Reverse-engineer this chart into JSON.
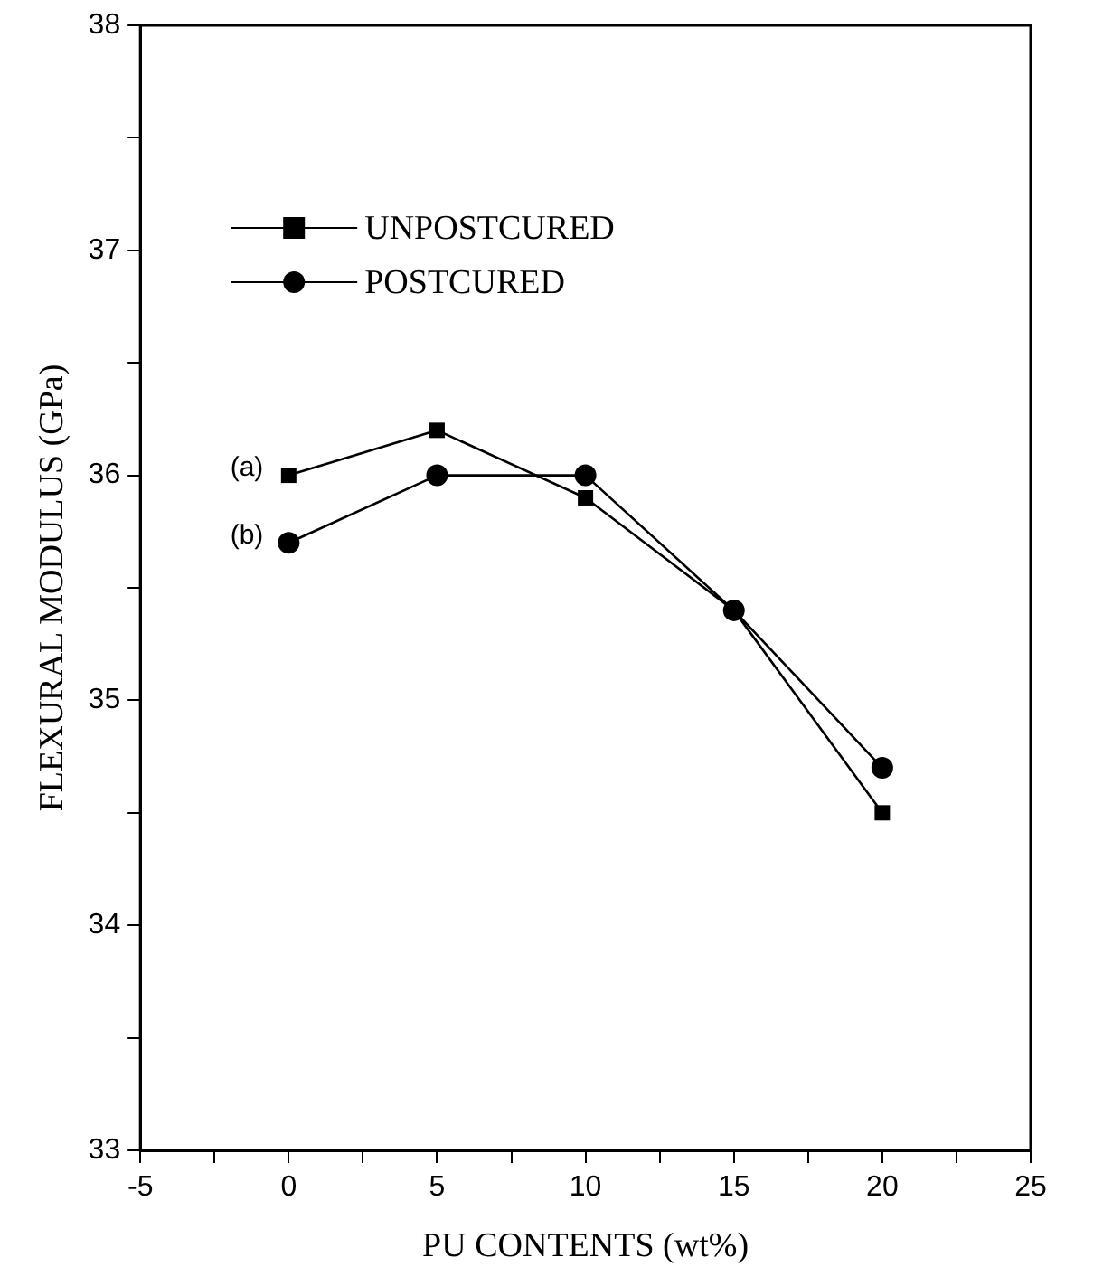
{
  "chart_data": {
    "type": "line",
    "xlabel": "PU CONTENTS (wt%)",
    "ylabel": "FLEXURAL MODULUS (GPa)",
    "x": [
      0,
      5,
      10,
      15,
      20
    ],
    "series": [
      {
        "name": "UNPOSTCURED",
        "color": "#000000",
        "marker": "square",
        "values": [
          36.0,
          36.2,
          35.9,
          35.4,
          34.5
        ]
      },
      {
        "name": "POSTCURED",
        "color": "#000000",
        "marker": "circle",
        "values": [
          35.7,
          36.0,
          36.0,
          35.4,
          34.7
        ]
      }
    ],
    "xlim": [
      -5,
      25
    ],
    "xticks": [
      -5,
      {
        "value": -2.5,
        "label": null
      },
      0,
      {
        "value": 2.5,
        "label": null
      },
      5,
      {
        "value": 7.5,
        "label": null
      },
      10,
      {
        "value": 12.5,
        "label": null
      },
      15,
      {
        "value": 17.5,
        "label": null
      },
      20,
      {
        "value": 22.5,
        "label": null
      },
      25
    ],
    "ylim": [
      33,
      38
    ],
    "yticks": [
      33,
      {
        "value": 33.5,
        "label": null
      },
      34,
      {
        "value": 34.5,
        "label": null
      },
      35,
      {
        "value": 35.5,
        "label": null
      },
      36,
      {
        "value": 36.5,
        "label": null
      },
      37,
      {
        "value": 37.5,
        "label": null
      },
      38
    ],
    "annotations": [
      {
        "text": "(a)",
        "x": 0,
        "y": 36.0
      },
      {
        "text": "(b)",
        "x": 0,
        "y": 35.7
      }
    ],
    "legend": "top left",
    "grid": false,
    "line_style": "solid"
  }
}
